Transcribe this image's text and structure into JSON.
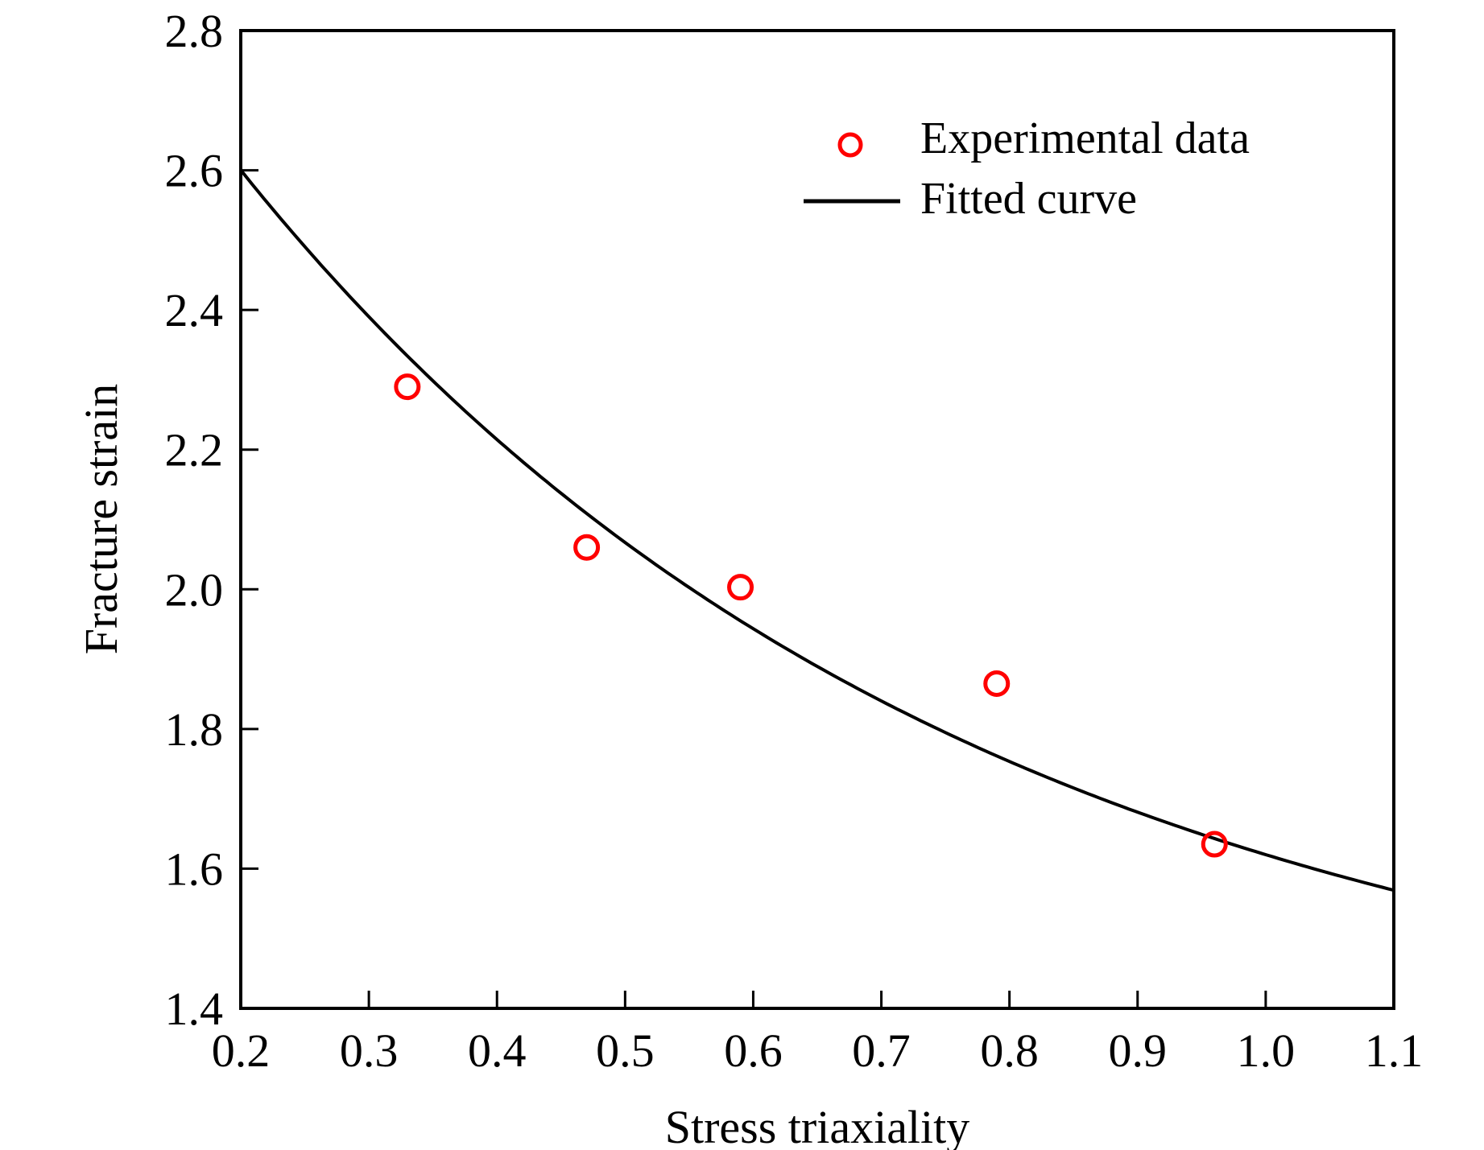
{
  "chart_data": {
    "type": "scatter",
    "title": "",
    "xlabel": "Stress triaxiality",
    "ylabel": "Fracture strain",
    "xlim": [
      0.2,
      1.1
    ],
    "ylim": [
      1.4,
      2.8
    ],
    "xticks": [
      "0.2",
      "0.3",
      "0.4",
      "0.5",
      "0.6",
      "0.7",
      "0.8",
      "0.9",
      "1.0",
      "1.1"
    ],
    "yticks": [
      "1.4",
      "1.6",
      "1.8",
      "2.0",
      "2.2",
      "2.4",
      "2.6",
      "2.8"
    ],
    "grid": false,
    "legend_position": "top-right",
    "series": [
      {
        "name": "Experimental data",
        "kind": "scatter",
        "marker": "open-circle",
        "color": "#ff0000",
        "x": [
          0.33,
          0.47,
          0.59,
          0.79,
          0.96
        ],
        "y": [
          2.29,
          2.06,
          2.003,
          1.865,
          1.635
        ]
      },
      {
        "name": "Fitted curve",
        "kind": "line",
        "color": "#000000",
        "model": "y = a + b*exp(-c*x)",
        "params": {
          "a": 1.306,
          "b": 1.844,
          "c": 1.77
        },
        "x_range": [
          0.2,
          1.1
        ]
      }
    ]
  }
}
